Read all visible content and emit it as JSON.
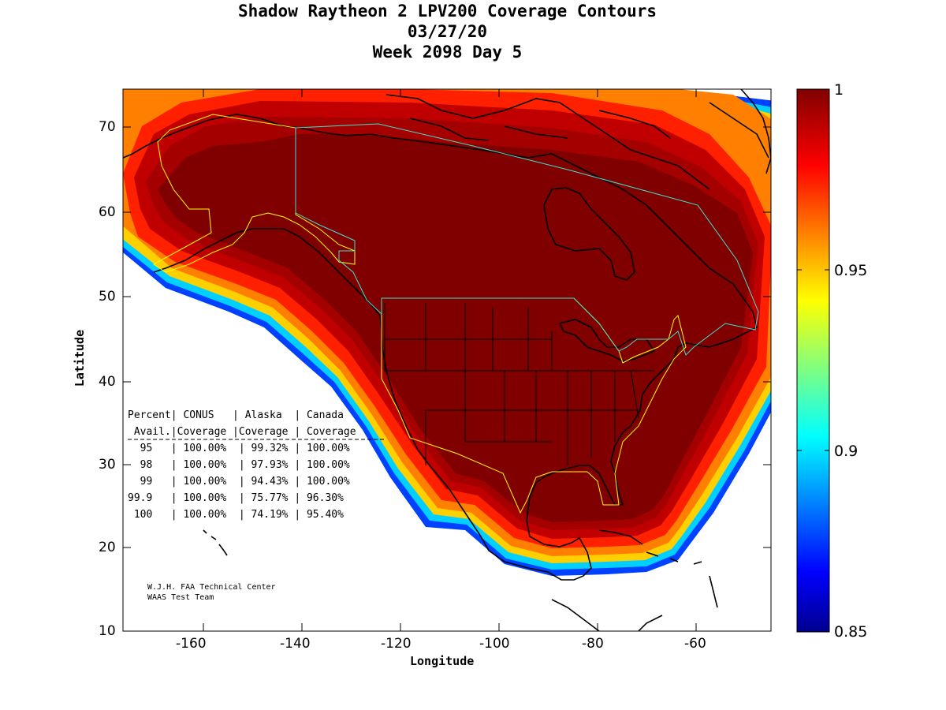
{
  "title": {
    "line1": "Shadow Raytheon 2 LPV200 Coverage Contours",
    "line2": "03/27/20",
    "line3": "Week 2098 Day 5"
  },
  "axes": {
    "xlabel": "Longitude",
    "ylabel": "Latitude",
    "x_ticks": [
      "-160",
      "-140",
      "-120",
      "-100",
      "-80",
      "-60"
    ],
    "y_ticks": [
      "70",
      "60",
      "50",
      "40",
      "30",
      "20",
      "10"
    ],
    "xlim": [
      -175,
      -50
    ],
    "ylim": [
      10,
      75
    ]
  },
  "colorbar": {
    "labels": [
      "1",
      "0.95",
      "0.9",
      "0.85"
    ],
    "range": [
      0.85,
      1.0
    ],
    "colormap": "jet"
  },
  "stats_table": {
    "header1": "Percent| CONUS   | Alaska  | Canada",
    "header2": " Avail.|Coverage |Coverage | Coverage",
    "rows": [
      "  95   | 100.00%  | 99.32% | 100.00%",
      "  98   | 100.00%  | 97.93% | 100.00%",
      "  99   | 100.00%  | 94.43% | 100.00%",
      "99.9   | 100.00%  | 75.77% | 96.30%",
      " 100   | 100.00%  | 74.19% | 95.40%"
    ]
  },
  "credit": {
    "line1": "W.J.H. FAA Technical Center",
    "line2": "WAAS Test Team"
  },
  "colors": {
    "core": "#800000",
    "inner": "#a50000",
    "red": "#e40000",
    "orange_red": "#ff3000",
    "orange": "#ff8000",
    "yellow": "#ffd000",
    "cyan": "#00d0ff",
    "blue": "#0040ff",
    "boundary_conus": "#ffff00",
    "boundary_canada": "#40e0d0"
  }
}
